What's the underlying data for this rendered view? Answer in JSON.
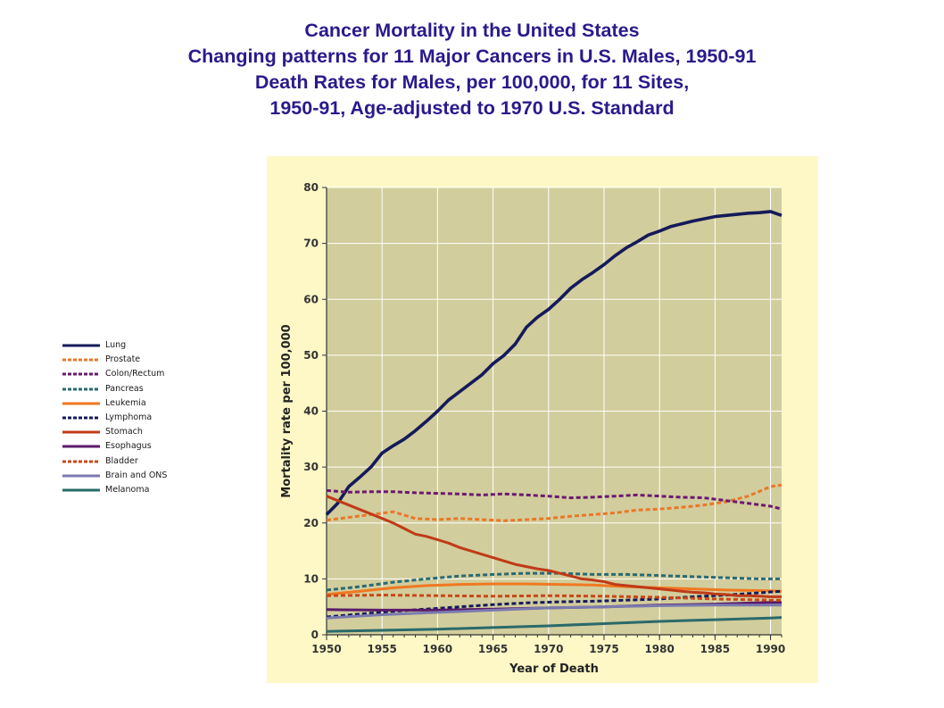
{
  "title_lines": [
    "Cancer Mortality in the United States",
    "Changing patterns for 11 Major Cancers in U.S. Males, 1950-91",
    "Death Rates for Males, per 100,000, for 11 Sites,",
    "1950-91, Age-adjusted to 1970 U.S. Standard"
  ],
  "colors": {
    "title": "#2a1a8c",
    "panel_bg": "#fdf8c6",
    "plot_bg": "#d2cd9c",
    "grid": "#ffffff"
  },
  "chart_data": {
    "type": "line",
    "xlabel": "Year of Death",
    "ylabel": "Mortality rate per 100,000",
    "xlim": [
      1950,
      1991
    ],
    "ylim": [
      0,
      80
    ],
    "xticks": [
      "1950",
      "1955",
      "1960",
      "1965",
      "1970",
      "1975",
      "1980",
      "1985",
      "1990"
    ],
    "yticks": [
      "0",
      "10",
      "20",
      "30",
      "40",
      "50",
      "60",
      "70",
      "80"
    ],
    "grid": true,
    "legend_position": "left, outside plot",
    "series": [
      {
        "name": "Lung",
        "color": "#141a5a",
        "dash": "solid",
        "x": [
          1950,
          1951,
          1952,
          1953,
          1954,
          1955,
          1956,
          1957,
          1958,
          1959,
          1960,
          1961,
          1962,
          1963,
          1964,
          1965,
          1966,
          1967,
          1968,
          1969,
          1970,
          1971,
          1972,
          1973,
          1974,
          1975,
          1976,
          1977,
          1978,
          1979,
          1980,
          1981,
          1982,
          1983,
          1984,
          1985,
          1986,
          1987,
          1988,
          1989,
          1990,
          1991
        ],
        "y": [
          21.5,
          23.5,
          26.5,
          28.2,
          30.0,
          32.5,
          33.8,
          35.0,
          36.5,
          38.2,
          40.0,
          42.0,
          43.5,
          45.0,
          46.5,
          48.5,
          50.0,
          52.0,
          55.0,
          56.8,
          58.2,
          60.0,
          62.0,
          63.5,
          64.8,
          66.2,
          67.8,
          69.2,
          70.3,
          71.5,
          72.2,
          73.0,
          73.5,
          74.0,
          74.4,
          74.8,
          75.0,
          75.2,
          75.4,
          75.5,
          75.7,
          75.0
        ]
      },
      {
        "name": "Prostate",
        "color": "#e8782a",
        "dash": "dashed",
        "x": [
          1950,
          1952,
          1954,
          1956,
          1958,
          1960,
          1962,
          1964,
          1966,
          1968,
          1970,
          1972,
          1974,
          1976,
          1978,
          1980,
          1982,
          1984,
          1986,
          1988,
          1990,
          1991
        ],
        "y": [
          20.5,
          21.0,
          21.5,
          22.0,
          20.8,
          20.6,
          20.8,
          20.6,
          20.4,
          20.6,
          20.8,
          21.2,
          21.5,
          21.8,
          22.3,
          22.5,
          22.8,
          23.2,
          23.8,
          24.8,
          26.5,
          26.8
        ]
      },
      {
        "name": "Colon/Rectum",
        "color": "#6a1a70",
        "dash": "dashed",
        "x": [
          1950,
          1952,
          1954,
          1956,
          1958,
          1960,
          1962,
          1964,
          1966,
          1968,
          1970,
          1972,
          1974,
          1976,
          1978,
          1980,
          1982,
          1984,
          1986,
          1988,
          1990,
          1991
        ],
        "y": [
          25.8,
          25.5,
          25.6,
          25.6,
          25.4,
          25.3,
          25.2,
          25.0,
          25.2,
          25.0,
          24.8,
          24.5,
          24.6,
          24.8,
          25.0,
          24.8,
          24.6,
          24.5,
          24.0,
          23.5,
          23.0,
          22.5
        ]
      },
      {
        "name": "Pancreas",
        "color": "#2a6a72",
        "dash": "dashed",
        "x": [
          1950,
          1953,
          1956,
          1959,
          1962,
          1965,
          1968,
          1971,
          1974,
          1977,
          1980,
          1983,
          1986,
          1989,
          1991
        ],
        "y": [
          8.0,
          8.6,
          9.4,
          10.0,
          10.5,
          10.8,
          11.0,
          11.0,
          10.8,
          10.8,
          10.6,
          10.4,
          10.2,
          10.0,
          10.0
        ]
      },
      {
        "name": "Leukemia",
        "color": "#f07820",
        "dash": "solid",
        "x": [
          1950,
          1953,
          1956,
          1959,
          1962,
          1965,
          1968,
          1971,
          1974,
          1977,
          1980,
          1983,
          1986,
          1989,
          1991
        ],
        "y": [
          7.2,
          7.8,
          8.4,
          8.8,
          9.0,
          9.1,
          9.1,
          9.0,
          8.9,
          8.6,
          8.4,
          8.2,
          8.0,
          7.9,
          7.8
        ]
      },
      {
        "name": "Lymphoma",
        "color": "#141a5a",
        "dash": "dashed",
        "x": [
          1950,
          1953,
          1956,
          1959,
          1962,
          1965,
          1968,
          1971,
          1974,
          1977,
          1980,
          1983,
          1986,
          1989,
          1991
        ],
        "y": [
          3.2,
          3.7,
          4.2,
          4.6,
          5.0,
          5.4,
          5.7,
          5.9,
          6.0,
          6.2,
          6.4,
          6.8,
          7.1,
          7.5,
          7.8
        ]
      },
      {
        "name": "Stomach",
        "color": "#c03a18",
        "dash": "solid",
        "x": [
          1950,
          1951,
          1952,
          1953,
          1954,
          1955,
          1956,
          1957,
          1958,
          1959,
          1960,
          1961,
          1962,
          1963,
          1964,
          1965,
          1966,
          1967,
          1968,
          1969,
          1970,
          1971,
          1972,
          1973,
          1974,
          1975,
          1976,
          1977,
          1978,
          1979,
          1980,
          1981,
          1982,
          1983,
          1984,
          1985,
          1986,
          1987,
          1988,
          1989,
          1990,
          1991
        ],
        "y": [
          24.8,
          24.0,
          23.2,
          22.4,
          21.6,
          20.8,
          20.0,
          19.0,
          18.0,
          17.6,
          17.0,
          16.4,
          15.6,
          15.0,
          14.4,
          13.8,
          13.2,
          12.6,
          12.2,
          11.8,
          11.5,
          11.0,
          10.5,
          10.0,
          9.8,
          9.5,
          9.0,
          8.8,
          8.6,
          8.4,
          8.2,
          8.0,
          7.8,
          7.6,
          7.5,
          7.3,
          7.2,
          7.0,
          7.0,
          6.9,
          6.8,
          6.8
        ]
      },
      {
        "name": "Esophagus",
        "color": "#5a1a6a",
        "dash": "solid",
        "x": [
          1950,
          1955,
          1960,
          1965,
          1970,
          1975,
          1980,
          1985,
          1990,
          1991
        ],
        "y": [
          4.5,
          4.4,
          4.4,
          4.6,
          4.8,
          5.0,
          5.3,
          5.5,
          5.8,
          5.8
        ]
      },
      {
        "name": "Bladder",
        "color": "#c8481a",
        "dash": "dashed",
        "x": [
          1950,
          1955,
          1960,
          1965,
          1970,
          1975,
          1980,
          1985,
          1990,
          1991
        ],
        "y": [
          7.0,
          7.1,
          7.0,
          6.9,
          7.0,
          6.9,
          6.7,
          6.4,
          6.2,
          6.2
        ]
      },
      {
        "name": "Brain and ONS",
        "color": "#7a7ab0",
        "dash": "solid",
        "x": [
          1950,
          1955,
          1960,
          1965,
          1970,
          1975,
          1980,
          1985,
          1990,
          1991
        ],
        "y": [
          3.0,
          3.6,
          4.0,
          4.4,
          4.8,
          5.0,
          5.2,
          5.3,
          5.3,
          5.3
        ]
      },
      {
        "name": "Melanoma",
        "color": "#2a6a6a",
        "dash": "solid",
        "x": [
          1950,
          1955,
          1960,
          1965,
          1970,
          1975,
          1980,
          1985,
          1990,
          1991
        ],
        "y": [
          0.6,
          0.8,
          1.0,
          1.3,
          1.6,
          2.0,
          2.4,
          2.7,
          3.0,
          3.1
        ]
      }
    ]
  }
}
